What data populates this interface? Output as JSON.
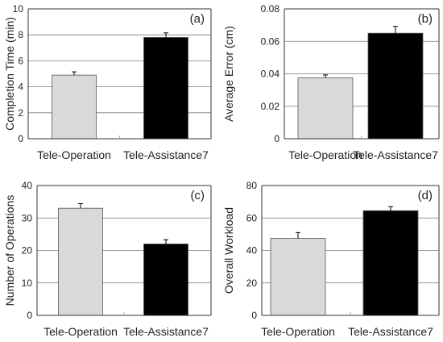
{
  "chart_data": [
    {
      "type": "bar",
      "panel_label": "(a)",
      "categories": [
        "Tele-Operation",
        "Tele-Assistance7"
      ],
      "values": [
        4.9,
        7.8
      ],
      "errors": [
        0.25,
        0.35
      ],
      "colors": [
        "#d9d9d9",
        "#000000"
      ],
      "ylabel": "Completion Time (min)",
      "ylim": [
        0,
        10
      ],
      "yticks": [
        0,
        2,
        4,
        6,
        8,
        10
      ],
      "yticklabels": [
        "0",
        "2",
        "4",
        "6",
        "8",
        "10"
      ],
      "grid": true
    },
    {
      "type": "bar",
      "panel_label": "(b)",
      "categories": [
        "Tele-Operation",
        "Tele-Assistance7"
      ],
      "values": [
        0.0375,
        0.065
      ],
      "errors": [
        0.0018,
        0.0042
      ],
      "colors": [
        "#d9d9d9",
        "#000000"
      ],
      "ylabel": "Average Error  (cm)",
      "ylim": [
        0,
        0.08
      ],
      "yticks": [
        0,
        0.02,
        0.04,
        0.06,
        0.08
      ],
      "yticklabels": [
        "0",
        "0.02",
        "0.04",
        "0.06",
        "0.08"
      ],
      "grid": true
    },
    {
      "type": "bar",
      "panel_label": "(c)",
      "categories": [
        "Tele-Operation",
        "Tele-Assistance7"
      ],
      "values": [
        33.0,
        22.0
      ],
      "errors": [
        1.4,
        1.3
      ],
      "colors": [
        "#d9d9d9",
        "#000000"
      ],
      "ylabel": "Number of Operations",
      "ylim": [
        0,
        40
      ],
      "yticks": [
        0,
        10,
        20,
        30,
        40
      ],
      "yticklabels": [
        "0",
        "10",
        "20",
        "30",
        "40"
      ],
      "grid": true
    },
    {
      "type": "bar",
      "panel_label": "(d)",
      "categories": [
        "Tele-Operation",
        "Tele-Assistance7"
      ],
      "values": [
        47.5,
        64.5
      ],
      "errors": [
        3.5,
        2.5
      ],
      "colors": [
        "#d9d9d9",
        "#000000"
      ],
      "ylabel": "Overall Workload",
      "ylim": [
        0,
        80
      ],
      "yticks": [
        0,
        20,
        40,
        60,
        80
      ],
      "yticklabels": [
        "0",
        "20",
        "40",
        "60",
        "80"
      ],
      "grid": true
    }
  ]
}
